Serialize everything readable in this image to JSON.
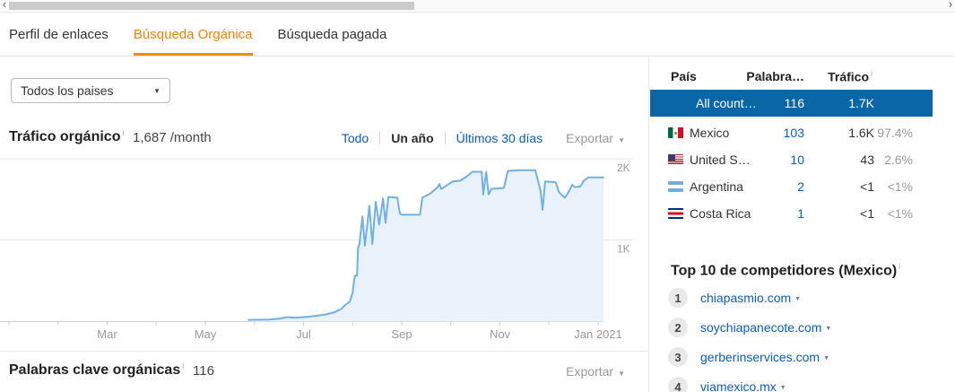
{
  "scrollbar": {
    "left_arrow": "‹",
    "right_arrow": "›"
  },
  "tabs": {
    "items": [
      {
        "label": "Perfil de enlaces",
        "active": false
      },
      {
        "label": "Búsqueda Orgánica",
        "active": true
      },
      {
        "label": "Búsqueda pagada",
        "active": false
      }
    ]
  },
  "filters": {
    "country_select_value": "Todos los paises"
  },
  "traffic_section": {
    "title": "Tráfico orgánico",
    "info": "i",
    "value": "1,687",
    "suffix": "/month",
    "range_links": [
      {
        "label": "Todo",
        "active": false
      },
      {
        "label": "Un año",
        "active": true
      },
      {
        "label": "Últimos 30 días",
        "active": false
      }
    ],
    "export_label": "Exportar"
  },
  "chart_data": {
    "type": "area",
    "title": "Tráfico orgánico",
    "summary_value": "1,687 /month",
    "x_axis": {
      "unit": "months from Jan 2020",
      "tick_labels": [
        "Mar",
        "May",
        "Jul",
        "Sep",
        "Nov",
        "Jan 2021"
      ],
      "tick_positions_months": [
        2,
        4,
        6,
        8,
        10,
        12
      ],
      "minor_tick_months": [
        0,
        1,
        2,
        3,
        4,
        5,
        6,
        7,
        8,
        9,
        10,
        11,
        12
      ]
    },
    "y_axis": {
      "range": [
        0,
        2000
      ],
      "ticks": [
        2000,
        1000
      ],
      "tick_labels": [
        "2K",
        "1K"
      ],
      "side": "right",
      "grid": true
    },
    "series": [
      {
        "name": "Tráfico orgánico",
        "color": "#71b0e2",
        "fill": "#e9f2fb",
        "points": [
          [
            4.88,
            15
          ],
          [
            5.3,
            20
          ],
          [
            5.52,
            32
          ],
          [
            5.63,
            45
          ],
          [
            5.7,
            50
          ],
          [
            5.79,
            42
          ],
          [
            5.94,
            48
          ],
          [
            6.12,
            55
          ],
          [
            6.3,
            68
          ],
          [
            6.43,
            80
          ],
          [
            6.54,
            95
          ],
          [
            6.63,
            110
          ],
          [
            6.7,
            130
          ],
          [
            6.78,
            155
          ],
          [
            6.85,
            200
          ],
          [
            6.94,
            240
          ],
          [
            7.0,
            350
          ],
          [
            7.03,
            505
          ],
          [
            7.05,
            560
          ],
          [
            7.09,
            560
          ],
          [
            7.11,
            900
          ],
          [
            7.14,
            950
          ],
          [
            7.2,
            1290
          ],
          [
            7.25,
            930
          ],
          [
            7.34,
            1420
          ],
          [
            7.4,
            950
          ],
          [
            7.47,
            1470
          ],
          [
            7.54,
            1190
          ],
          [
            7.62,
            1510
          ],
          [
            7.67,
            1210
          ],
          [
            7.73,
            1530
          ],
          [
            7.91,
            1520
          ],
          [
            7.96,
            1330
          ],
          [
            8.0,
            1310
          ],
          [
            8.37,
            1310
          ],
          [
            8.42,
            1520
          ],
          [
            8.58,
            1570
          ],
          [
            8.73,
            1650
          ],
          [
            8.77,
            1690
          ],
          [
            8.8,
            1630
          ],
          [
            8.86,
            1650
          ],
          [
            9.04,
            1720
          ],
          [
            9.19,
            1730
          ],
          [
            9.32,
            1780
          ],
          [
            9.44,
            1840
          ],
          [
            9.63,
            1840
          ],
          [
            9.66,
            1560
          ],
          [
            9.72,
            1840
          ],
          [
            9.77,
            1560
          ],
          [
            9.83,
            1630
          ],
          [
            10.08,
            1640
          ],
          [
            10.16,
            1850
          ],
          [
            10.41,
            1860
          ],
          [
            10.72,
            1860
          ],
          [
            10.78,
            1720
          ],
          [
            10.83,
            1600
          ],
          [
            10.87,
            1370
          ],
          [
            10.92,
            1720
          ],
          [
            11.14,
            1710
          ],
          [
            11.2,
            1590
          ],
          [
            11.32,
            1520
          ],
          [
            11.4,
            1590
          ],
          [
            11.47,
            1680
          ],
          [
            11.53,
            1650
          ],
          [
            11.64,
            1660
          ],
          [
            11.71,
            1730
          ],
          [
            11.8,
            1770
          ],
          [
            12.11,
            1770
          ]
        ]
      }
    ]
  },
  "countries_table": {
    "columns": {
      "country": "País",
      "keywords": "Palabra…",
      "traffic": "Tráfico"
    },
    "traffic_info": "i",
    "rows": [
      {
        "flag": "all",
        "name": "All count…",
        "keywords": "116",
        "traffic": "1.7K",
        "share": "",
        "selected": true
      },
      {
        "flag": "mexico",
        "name": "Mexico",
        "keywords": "103",
        "traffic": "1.6K",
        "share": "97.4%",
        "selected": false
      },
      {
        "flag": "us",
        "name": "United S…",
        "keywords": "10",
        "traffic": "43",
        "share": "2.6%",
        "selected": false
      },
      {
        "flag": "argentina",
        "name": "Argentina",
        "keywords": "2",
        "traffic": "<1",
        "share": "<1%",
        "selected": false
      },
      {
        "flag": "costa-rica",
        "name": "Costa Rica",
        "keywords": "1",
        "traffic": "<1",
        "share": "<1%",
        "selected": false
      }
    ]
  },
  "competitors": {
    "title": "Top 10 de competidores (Mexico)",
    "info": "i",
    "items": [
      {
        "rank": "1",
        "domain": "chiapasmio.com"
      },
      {
        "rank": "2",
        "domain": "soychiapanecote.com"
      },
      {
        "rank": "3",
        "domain": "gerberinservices.com"
      },
      {
        "rank": "4",
        "domain": "viamexico.mx"
      }
    ]
  },
  "keywords_section": {
    "title": "Palabras clave orgánicas",
    "info": "i",
    "count": "116",
    "export_label": "Exportar"
  },
  "colors": {
    "accent_orange": "#ff8a00",
    "active_tab_text": "#f0820f",
    "link_blue": "#0d5eb4",
    "selected_row_bg": "#0a66a4",
    "chart_line": "#71b0e2",
    "chart_fill": "#e9f2fb",
    "muted_gray": "#9a9a9a"
  }
}
